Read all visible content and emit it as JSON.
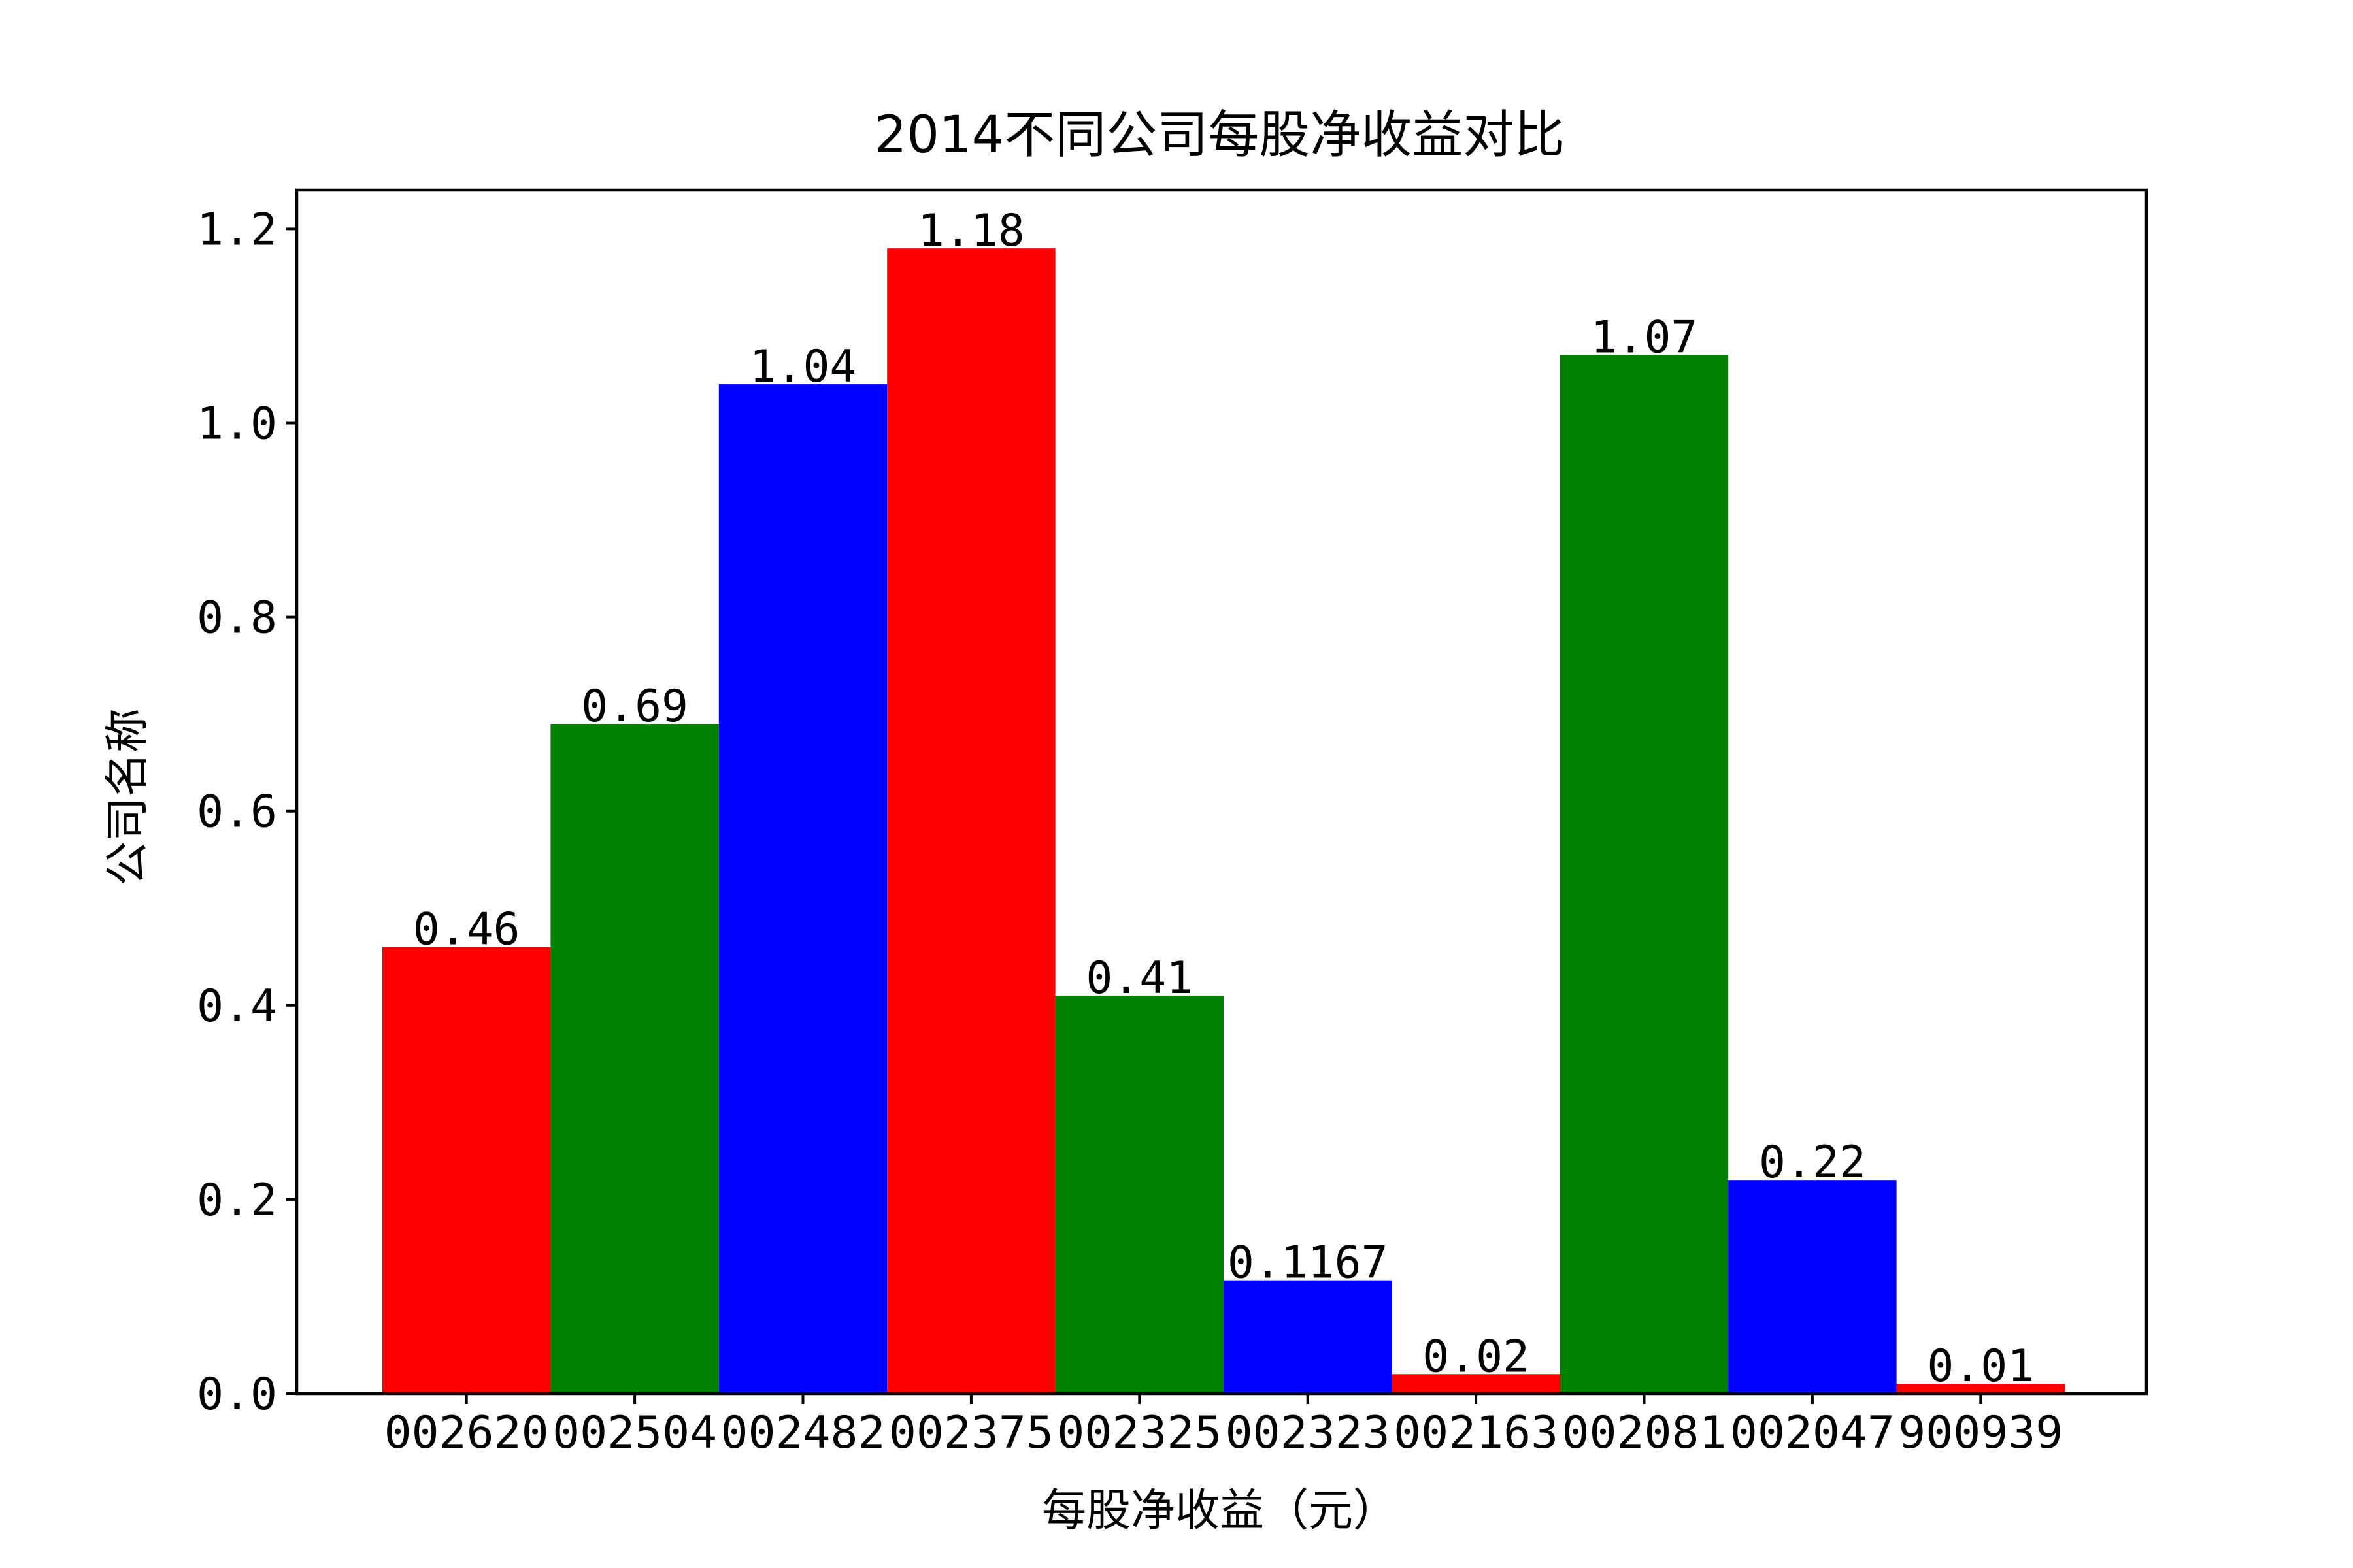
{
  "chart_data": {
    "type": "bar",
    "title": "2014不同公司每股净收益对比",
    "xlabel": "每股净收益（元）",
    "ylabel": "公司名称",
    "categories": [
      "002620",
      "002504",
      "002482",
      "002375",
      "002325",
      "002323",
      "002163",
      "002081",
      "002047",
      "900939"
    ],
    "values": [
      0.46,
      0.69,
      1.04,
      1.18,
      0.41,
      0.1167,
      0.02,
      1.07,
      0.22,
      0.01
    ],
    "value_labels": [
      "0.46",
      "0.69",
      "1.04",
      "1.18",
      "0.41",
      "0.1167",
      "0.02",
      "1.07",
      "0.22",
      "0.01"
    ],
    "colors": [
      "#ff0000",
      "#008000",
      "#0000ff",
      "#ff0000",
      "#008000",
      "#0000ff",
      "#ff0000",
      "#008000",
      "#0000ff",
      "#ff0000"
    ],
    "ylim": [
      0,
      1.24
    ],
    "yticks": [
      "0.0",
      "0.2",
      "0.4",
      "0.6",
      "0.8",
      "1.0",
      "1.2"
    ],
    "ytick_values": [
      0,
      0.2,
      0.4,
      0.6,
      0.8,
      1.0,
      1.2
    ],
    "grid": false,
    "legend": false
  }
}
